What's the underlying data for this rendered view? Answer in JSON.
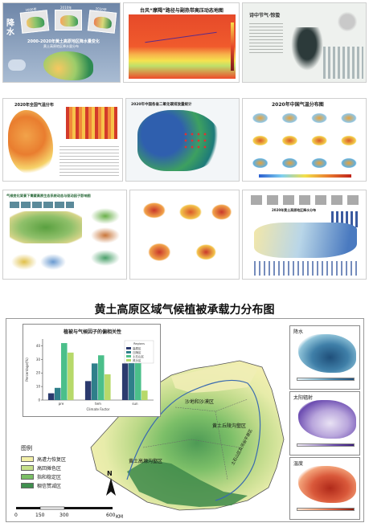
{
  "tiles": {
    "precip": {
      "side_title": "降水",
      "years": [
        "2000年",
        "2010年",
        "2020年"
      ],
      "title": "2000-2020年黄土高原地区降水量变化",
      "subtitle": "黄土高原地区降水量分布"
    },
    "typhoon": {
      "title": "台风“摩羯”路径与副热带高压动态地图"
    },
    "poem": {
      "title": "诗中节气·惊蛰"
    },
    "temp_bar": {
      "title": "2020年全国气温分布"
    },
    "national_ecology": {
      "title": "2020年中国各省二氧化碳排放量统计"
    },
    "temp_grid": {
      "title": "2020年中国气温分布图"
    },
    "qinghai": {
      "title": "气候变化背景下青藏高原生态系统动态与驱动因子影响图"
    },
    "multi_map": {
      "title": ""
    },
    "loess_profile": {
      "title": "2020年黄土高原地区降水分布"
    }
  },
  "main": {
    "title": "黄土高原区域气候植被承载力分布图",
    "chart_data": {
      "type": "bar",
      "title": "植被与气候因子的偏相关性",
      "categories": [
        "pre",
        "tem",
        "sun"
      ],
      "xlabel": "Climate Factor",
      "ylabel": "Percentage(%)",
      "legend_title": "Regions",
      "series": [
        {
          "name": "高原区",
          "values": [
            5,
            14,
            27
          ]
        },
        {
          "name": "丘陵区",
          "values": [
            9,
            27,
            30
          ]
        },
        {
          "name": "土石山区",
          "values": [
            42,
            33,
            43
          ]
        },
        {
          "name": "风沙区",
          "values": [
            35,
            19,
            7
          ]
        }
      ],
      "ylim": [
        0,
        45
      ],
      "colors": [
        "#2b3a6e",
        "#2f7f8a",
        "#4bbf8a",
        "#b7d96a"
      ]
    },
    "region_labels": [
      "沙地和沙漠区",
      "黄土丘陵沟壑区",
      "黄土高塬沟壑区",
      "土石山区及河谷平原区"
    ],
    "legend": {
      "title": "图例",
      "items": [
        {
          "label": "高遭力恢复区",
          "color": "#f3f0a8"
        },
        {
          "label": "高回摊色区",
          "color": "#c6e08a"
        },
        {
          "label": "指和稳定区",
          "color": "#7bbf66"
        },
        {
          "label": "稠信赞减区",
          "color": "#3f8f4e"
        }
      ]
    },
    "scale": {
      "ticks": [
        "0",
        "150",
        "300",
        "600"
      ],
      "unit": "KM"
    },
    "north": "N",
    "insets": [
      {
        "title": "降水",
        "ticks": [
          "",
          "",
          "",
          "",
          ""
        ]
      },
      {
        "title": "太阳辐射",
        "ticks": [
          "",
          "",
          "",
          "",
          ""
        ]
      },
      {
        "title": "温度",
        "ticks": [
          "",
          "",
          "",
          "",
          ""
        ]
      }
    ]
  }
}
